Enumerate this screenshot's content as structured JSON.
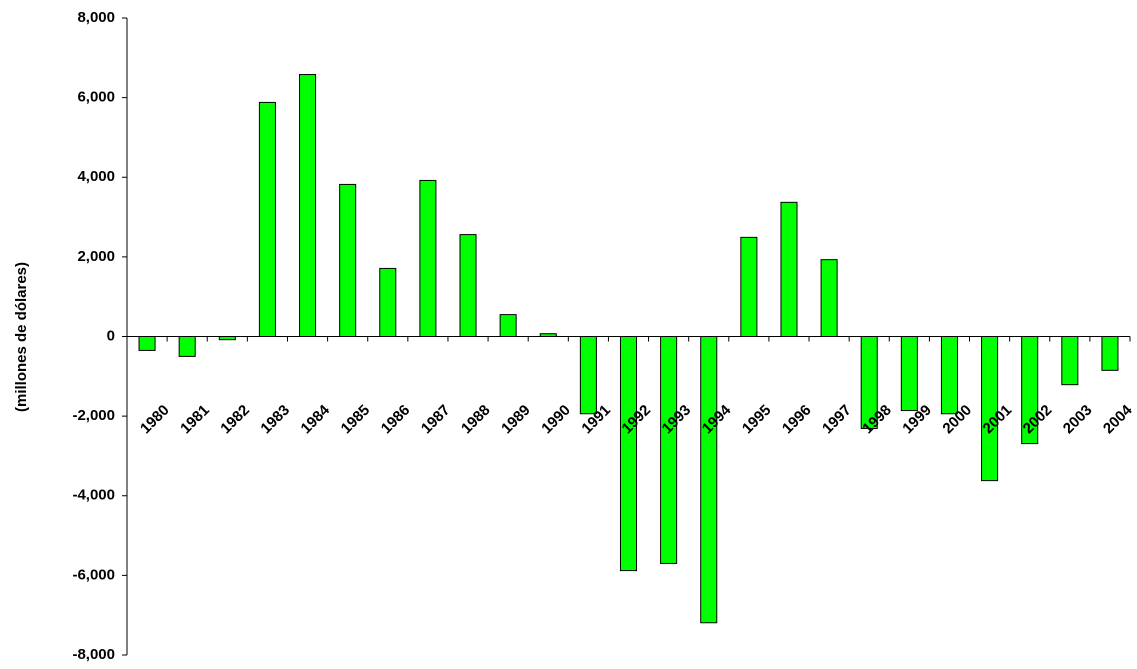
{
  "chart_data": {
    "type": "bar",
    "y_label": "(millones de dólares)",
    "categories": [
      "1980",
      "1981",
      "1982",
      "1983",
      "1984",
      "1985",
      "1986",
      "1987",
      "1988",
      "1989",
      "1990",
      "1991",
      "1992",
      "1993",
      "1994",
      "1995",
      "1996",
      "1997",
      "1998",
      "1999",
      "2000",
      "2001",
      "2002",
      "2003",
      "2004"
    ],
    "values": [
      -350,
      -500,
      -80,
      5880,
      6580,
      3820,
      1710,
      3920,
      2560,
      550,
      70,
      -1940,
      -5880,
      -5700,
      -7190,
      2490,
      3370,
      1930,
      -2310,
      -1860,
      -1940,
      -3620,
      -2690,
      -1210,
      -850
    ],
    "color": "#00ff00",
    "ylim": [
      -8000,
      8000
    ],
    "yticks": [
      {
        "value": -8000,
        "label": "-8,000"
      },
      {
        "value": -6000,
        "label": "-6,000"
      },
      {
        "value": -4000,
        "label": "-4,000"
      },
      {
        "value": -2000,
        "label": "-2,000"
      },
      0,
      {
        "value": 2000,
        "label": "2,000"
      },
      {
        "value": 4000,
        "label": "4,000"
      },
      {
        "value": 6000,
        "label": "6,000"
      },
      {
        "value": 8000,
        "label": "8,000"
      }
    ],
    "grid": false
  }
}
